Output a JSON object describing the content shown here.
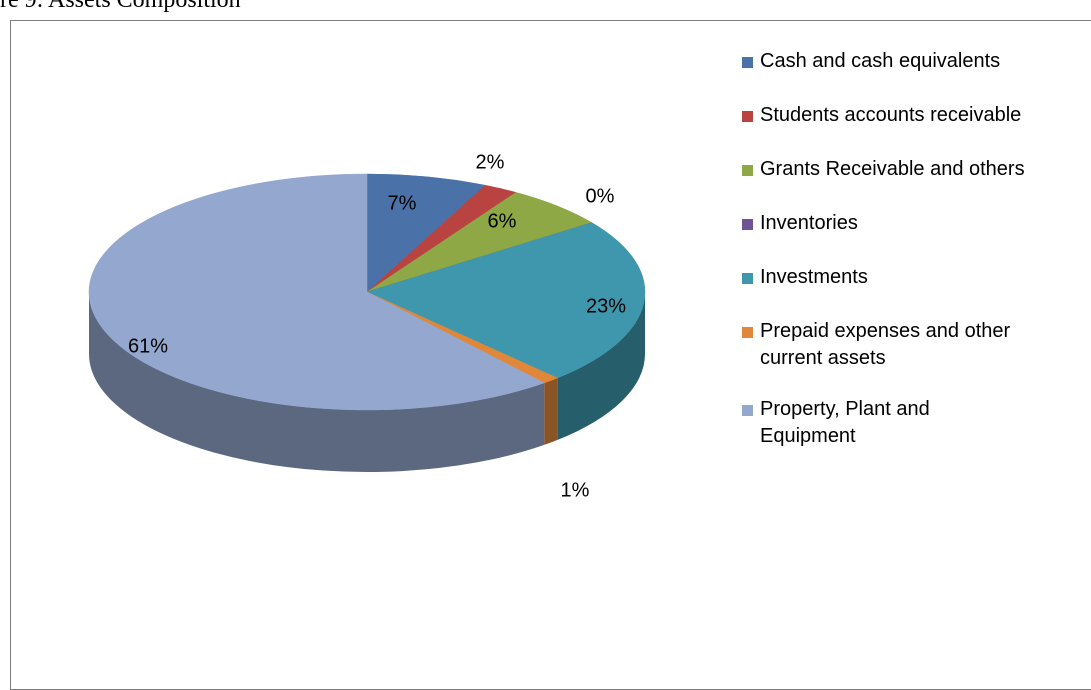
{
  "chart_data": {
    "type": "pie",
    "title": "re 9: Assets Composition",
    "categories": [
      "Cash and cash equivalents",
      "Students accounts receivable",
      "Grants Receivable and others",
      "Inventories",
      "Investments",
      "Prepaid expenses and other current assets",
      "Property, Plant and Equipment"
    ],
    "values": [
      7,
      2,
      6,
      0,
      23,
      1,
      61
    ],
    "value_labels": [
      "7%",
      "2%",
      "6%",
      "0%",
      "23%",
      "1%",
      "61%"
    ],
    "colors": [
      "#4a72a8",
      "#b84341",
      "#8fa846",
      "#6f5394",
      "#3f97ad",
      "#e0873a",
      "#93a7cf"
    ],
    "legend": "right"
  }
}
